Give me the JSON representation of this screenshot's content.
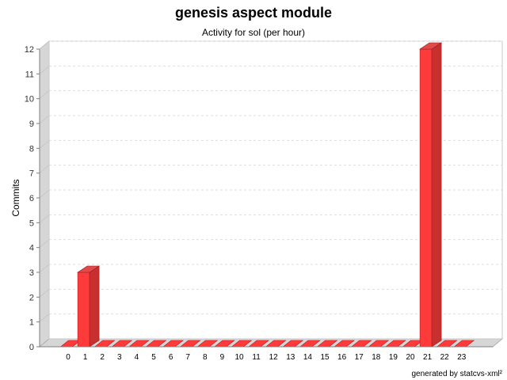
{
  "title": "genesis aspect module",
  "subtitle": "Activity for sol (per hour)",
  "footer": "generated by statcvs-xml²",
  "chart_data": {
    "type": "bar",
    "title": "genesis aspect module",
    "subtitle": "Activity for sol (per hour)",
    "xlabel": "",
    "ylabel": "Commits",
    "categories": [
      "0",
      "1",
      "2",
      "3",
      "4",
      "5",
      "6",
      "7",
      "8",
      "9",
      "10",
      "11",
      "12",
      "13",
      "14",
      "15",
      "16",
      "17",
      "18",
      "19",
      "20",
      "21",
      "22",
      "23"
    ],
    "values": [
      0,
      3,
      0,
      0,
      0,
      0,
      0,
      0,
      0,
      0,
      0,
      0,
      0,
      0,
      0,
      0,
      0,
      0,
      0,
      0,
      0,
      12,
      0,
      0
    ],
    "ylim": [
      0,
      12
    ],
    "yticks": [
      0,
      1,
      2,
      3,
      4,
      5,
      6,
      7,
      8,
      9,
      10,
      11,
      12
    ],
    "grid": true,
    "legend": "none",
    "bar_color": "#ff3a3a",
    "style": "3d"
  }
}
